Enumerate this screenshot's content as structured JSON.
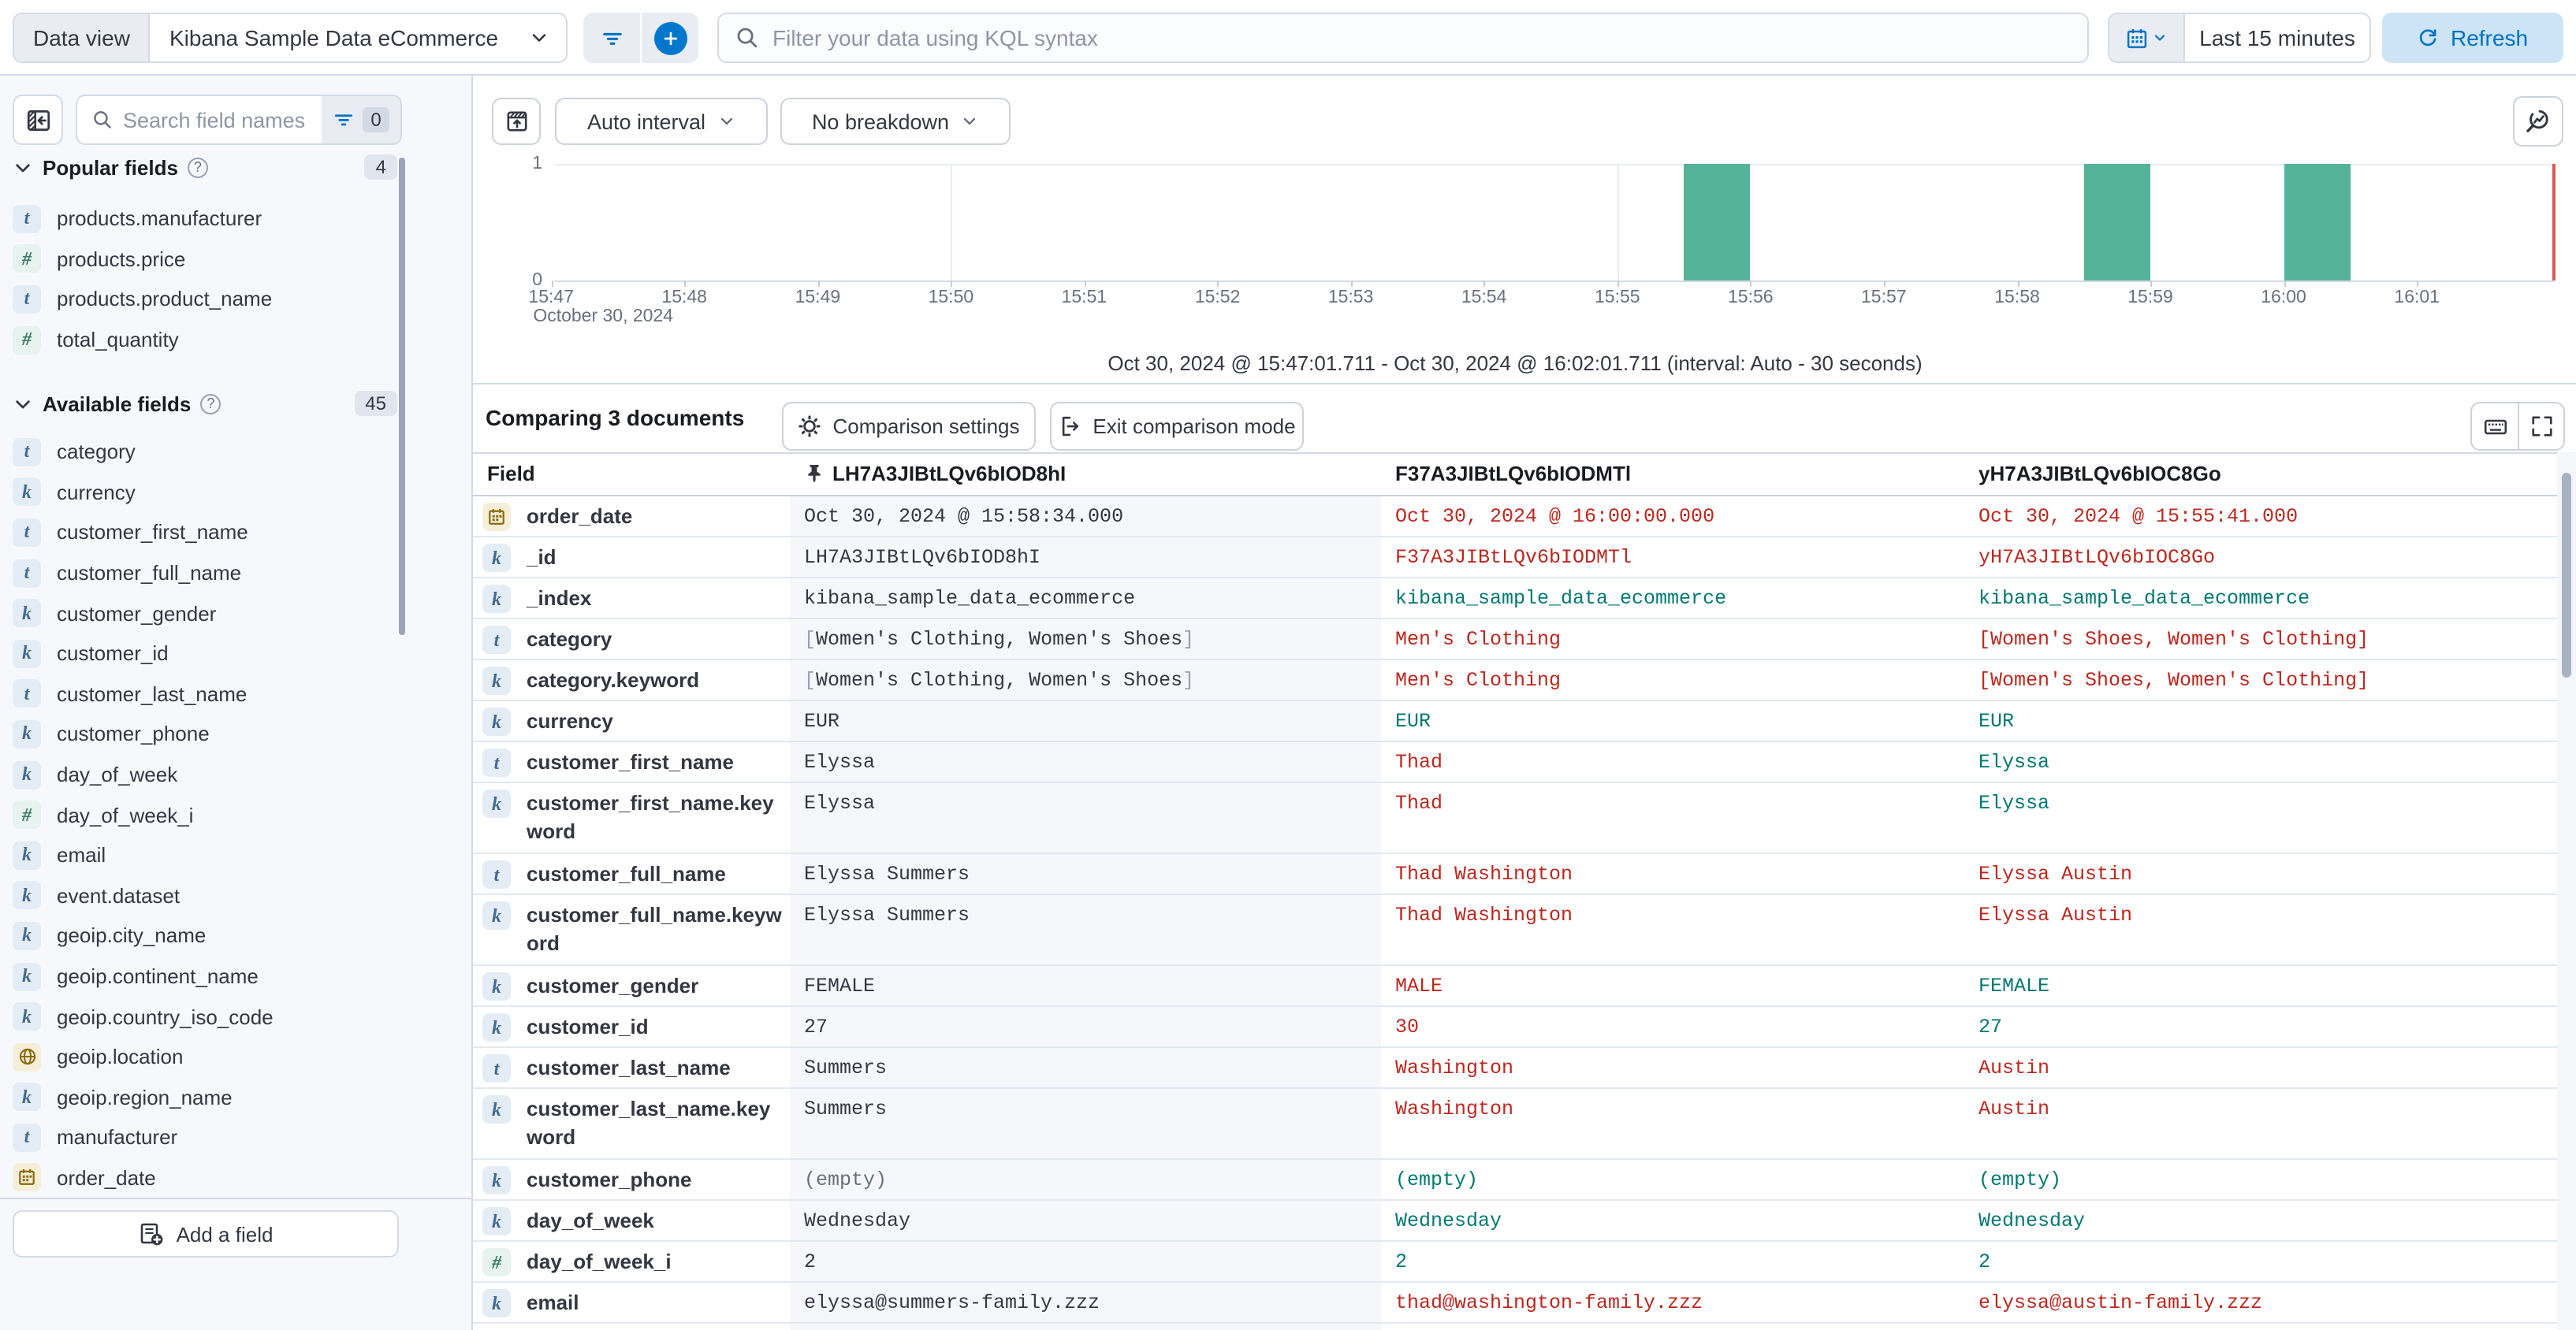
{
  "topbar": {
    "data_view_label": "Data view",
    "data_view_value": "Kibana Sample Data eCommerce",
    "kql_placeholder": "Filter your data using KQL syntax",
    "time_range": "Last 15 minutes",
    "refresh_label": "Refresh"
  },
  "sidebar": {
    "search_placeholder": "Search field names",
    "filter_count": "0",
    "popular": {
      "title": "Popular fields",
      "count": "4",
      "items": [
        {
          "name": "products.manufacturer",
          "type": "t"
        },
        {
          "name": "products.price",
          "type": "n"
        },
        {
          "name": "products.product_name",
          "type": "t"
        },
        {
          "name": "total_quantity",
          "type": "n"
        }
      ]
    },
    "available": {
      "title": "Available fields",
      "count": "45",
      "items": [
        {
          "name": "category",
          "type": "t"
        },
        {
          "name": "currency",
          "type": "k"
        },
        {
          "name": "customer_first_name",
          "type": "t"
        },
        {
          "name": "customer_full_name",
          "type": "t"
        },
        {
          "name": "customer_gender",
          "type": "k"
        },
        {
          "name": "customer_id",
          "type": "k"
        },
        {
          "name": "customer_last_name",
          "type": "t"
        },
        {
          "name": "customer_phone",
          "type": "k"
        },
        {
          "name": "day_of_week",
          "type": "k"
        },
        {
          "name": "day_of_week_i",
          "type": "n"
        },
        {
          "name": "email",
          "type": "k"
        },
        {
          "name": "event.dataset",
          "type": "k"
        },
        {
          "name": "geoip.city_name",
          "type": "k"
        },
        {
          "name": "geoip.continent_name",
          "type": "k"
        },
        {
          "name": "geoip.country_iso_code",
          "type": "k"
        },
        {
          "name": "geoip.location",
          "type": "geo"
        },
        {
          "name": "geoip.region_name",
          "type": "k"
        },
        {
          "name": "manufacturer",
          "type": "t"
        },
        {
          "name": "order_date",
          "type": "d"
        }
      ]
    },
    "add_field_label": "Add a field"
  },
  "chart_toolbar": {
    "interval_label": "Auto interval",
    "breakdown_label": "No breakdown"
  },
  "chart_data": {
    "type": "bar",
    "title": "Document count histogram",
    "x_domain_start": "15:47:01.711",
    "x_domain_end": "16:02:01.711",
    "x_tick_labels": [
      "15:47",
      "15:48",
      "15:49",
      "15:50",
      "15:51",
      "15:52",
      "15:53",
      "15:54",
      "15:55",
      "15:56",
      "15:57",
      "15:58",
      "15:59",
      "16:00",
      "16:01"
    ],
    "x_axis_date": "October 30, 2024",
    "gridline_times": [
      "15:50:00",
      "15:55:00",
      "16:00:00"
    ],
    "y_ticks": [
      1,
      0
    ],
    "ylim": [
      0,
      1
    ],
    "bucket_seconds": 30,
    "bars": [
      {
        "time": "15:55:30",
        "count": 1
      },
      {
        "time": "15:58:30",
        "count": 1
      },
      {
        "time": "16:00:00",
        "count": 1
      }
    ],
    "bar_color": "#54B399",
    "now_marker_color": "#DB5A52",
    "caption": "Oct 30, 2024 @ 15:47:01.711 - Oct 30, 2024 @ 16:02:01.711 (interval: Auto - 30 seconds)"
  },
  "comparison": {
    "title": "Comparing 3 documents",
    "settings_label": "Comparison settings",
    "exit_label": "Exit comparison mode"
  },
  "table": {
    "field_header": "Field",
    "columns": [
      "LH7A3JIBtLQv6bIOD8hI",
      "F37A3JIBtLQv6bIODMTl",
      "yH7A3JIBtLQv6bIOC8Go"
    ],
    "rows": [
      {
        "field": "order_date",
        "type": "d",
        "base": "Oct 30, 2024 @ 15:58:34.000",
        "a": "Oct 30, 2024 @ 16:00:00.000",
        "a_state": "diff",
        "b": "Oct 30, 2024 @ 15:55:41.000",
        "b_state": "diff"
      },
      {
        "field": "_id",
        "type": "k",
        "base": "LH7A3JIBtLQv6bIOD8hI",
        "a": "F37A3JIBtLQv6bIODMTl",
        "a_state": "diff",
        "b": "yH7A3JIBtLQv6bIOC8Go",
        "b_state": "diff"
      },
      {
        "field": "_index",
        "type": "k",
        "base": "kibana_sample_data_ecommerce",
        "a": "kibana_sample_data_ecommerce",
        "a_state": "same",
        "b": "kibana_sample_data_ecommerce",
        "b_state": "same"
      },
      {
        "field": "category",
        "type": "t",
        "base": "[Women's Clothing, Women's Shoes]",
        "a": "Men's Clothing",
        "a_state": "diff",
        "b": "[Women's Shoes, Women's Clothing]",
        "b_state": "diff"
      },
      {
        "field": "category.keyword",
        "type": "k",
        "base": "[Women's Clothing, Women's Shoes]",
        "a": "Men's Clothing",
        "a_state": "diff",
        "b": "[Women's Shoes, Women's Clothing]",
        "b_state": "diff"
      },
      {
        "field": "currency",
        "type": "k",
        "base": "EUR",
        "a": "EUR",
        "a_state": "same",
        "b": "EUR",
        "b_state": "same"
      },
      {
        "field": "customer_first_name",
        "type": "t",
        "base": "Elyssa",
        "a": "Thad",
        "a_state": "diff",
        "b": "Elyssa",
        "b_state": "same"
      },
      {
        "field": "customer_first_name.keyword",
        "type": "k",
        "wrap": true,
        "base": "Elyssa",
        "a": "Thad",
        "a_state": "diff",
        "b": "Elyssa",
        "b_state": "same"
      },
      {
        "field": "customer_full_name",
        "type": "t",
        "base": "Elyssa Summers",
        "a": "Thad Washington",
        "a_state": "diff",
        "b": "Elyssa Austin",
        "b_state": "diff"
      },
      {
        "field": "customer_full_name.keyword",
        "type": "k",
        "wrap": true,
        "base": "Elyssa Summers",
        "a": "Thad Washington",
        "a_state": "diff",
        "b": "Elyssa Austin",
        "b_state": "diff"
      },
      {
        "field": "customer_gender",
        "type": "k",
        "base": "FEMALE",
        "a": "MALE",
        "a_state": "diff",
        "b": "FEMALE",
        "b_state": "same"
      },
      {
        "field": "customer_id",
        "type": "k",
        "base": "27",
        "a": "30",
        "a_state": "diff",
        "b": "27",
        "b_state": "same"
      },
      {
        "field": "customer_last_name",
        "type": "t",
        "base": "Summers",
        "a": "Washington",
        "a_state": "diff",
        "b": "Austin",
        "b_state": "diff"
      },
      {
        "field": "customer_last_name.keyword",
        "type": "k",
        "wrap": true,
        "base": "Summers",
        "a": "Washington",
        "a_state": "diff",
        "b": "Austin",
        "b_state": "diff"
      },
      {
        "field": "customer_phone",
        "type": "k",
        "base": "(empty)",
        "base_muted": true,
        "a": "(empty)",
        "a_state": "same",
        "b": "(empty)",
        "b_state": "same"
      },
      {
        "field": "day_of_week",
        "type": "k",
        "base": "Wednesday",
        "a": "Wednesday",
        "a_state": "same",
        "b": "Wednesday",
        "b_state": "same"
      },
      {
        "field": "day_of_week_i",
        "type": "n",
        "base": "2",
        "a": "2",
        "a_state": "same",
        "b": "2",
        "b_state": "same"
      },
      {
        "field": "email",
        "type": "k",
        "base": "elyssa@summers-family.zzz",
        "a": "thad@washington-family.zzz",
        "a_state": "diff",
        "b": "elyssa@austin-family.zzz",
        "b_state": "diff"
      }
    ],
    "partial_next_row": {
      "type": "k"
    }
  }
}
